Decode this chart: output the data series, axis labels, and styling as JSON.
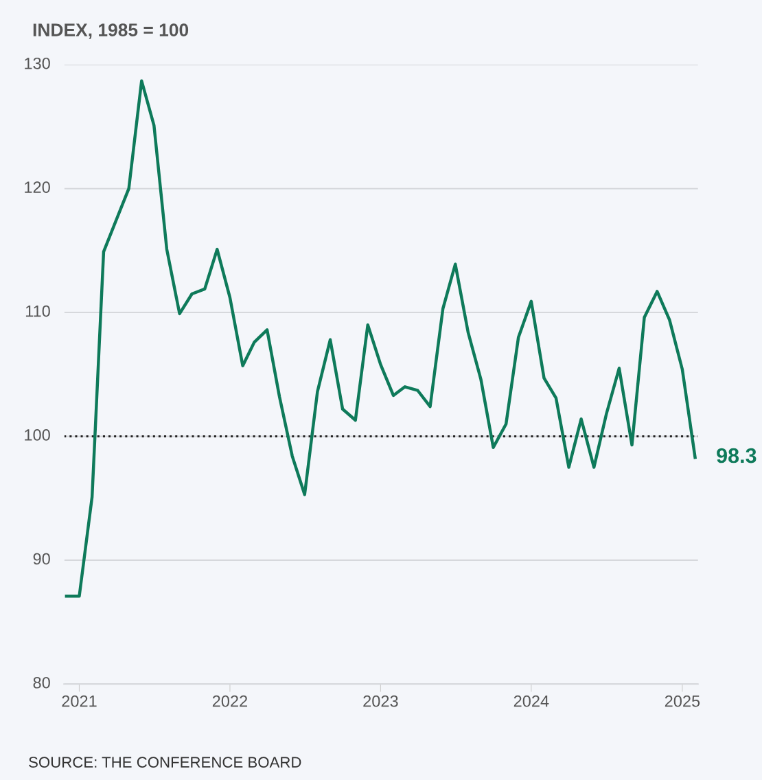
{
  "chart_data": {
    "type": "line",
    "ylabel": "INDEX, 1985 = 100",
    "x": [
      "2020-12",
      "2021-01",
      "2021-02",
      "2021-03",
      "2021-04",
      "2021-05",
      "2021-06",
      "2021-07",
      "2021-08",
      "2021-09",
      "2021-10",
      "2021-11",
      "2021-12",
      "2022-01",
      "2022-02",
      "2022-03",
      "2022-04",
      "2022-05",
      "2022-06",
      "2022-07",
      "2022-08",
      "2022-09",
      "2022-10",
      "2022-11",
      "2022-12",
      "2023-01",
      "2023-02",
      "2023-03",
      "2023-04",
      "2023-05",
      "2023-06",
      "2023-07",
      "2023-08",
      "2023-09",
      "2023-10",
      "2023-11",
      "2023-12",
      "2024-01",
      "2024-02",
      "2024-03",
      "2024-04",
      "2024-05",
      "2024-06",
      "2024-07",
      "2024-08",
      "2024-09",
      "2024-10",
      "2024-11",
      "2024-12",
      "2025-01",
      "2025-02"
    ],
    "series": [
      {
        "color": "#0e7a5a",
        "values": [
          87.1,
          87.1,
          95.1,
          114.9,
          117.5,
          120.0,
          128.7,
          125.1,
          115.1,
          109.9,
          111.5,
          111.9,
          115.1,
          111.2,
          105.7,
          107.6,
          108.6,
          103.2,
          98.4,
          95.3,
          103.6,
          107.8,
          102.2,
          101.3,
          109.0,
          105.8,
          103.3,
          104.0,
          103.7,
          102.4,
          110.3,
          113.9,
          108.4,
          104.6,
          99.1,
          101.0,
          108.0,
          110.9,
          104.7,
          103.1,
          97.5,
          101.4,
          97.5,
          101.8,
          105.5,
          99.3,
          109.6,
          111.7,
          109.4,
          105.4,
          98.3
        ]
      }
    ],
    "xlim": [
      "2020-11-25",
      "2025-02-08"
    ],
    "xticks": [
      "2021",
      "2022",
      "2023",
      "2024",
      "2025"
    ],
    "ylim": [
      80,
      130
    ],
    "yticks": [
      80,
      90,
      100,
      110,
      120,
      130
    ],
    "grid": "y",
    "legend": false,
    "marker": "none",
    "line_style": "solid",
    "ref_lines": [
      {
        "axis": "y",
        "value": 100,
        "color": "#222222",
        "line_style": "dotted"
      }
    ],
    "annotations": [
      {
        "text": "98.3",
        "x": "2025-02",
        "y": 98.3
      },
      "SOURCE: THE CONFERENCE BOARD"
    ]
  }
}
